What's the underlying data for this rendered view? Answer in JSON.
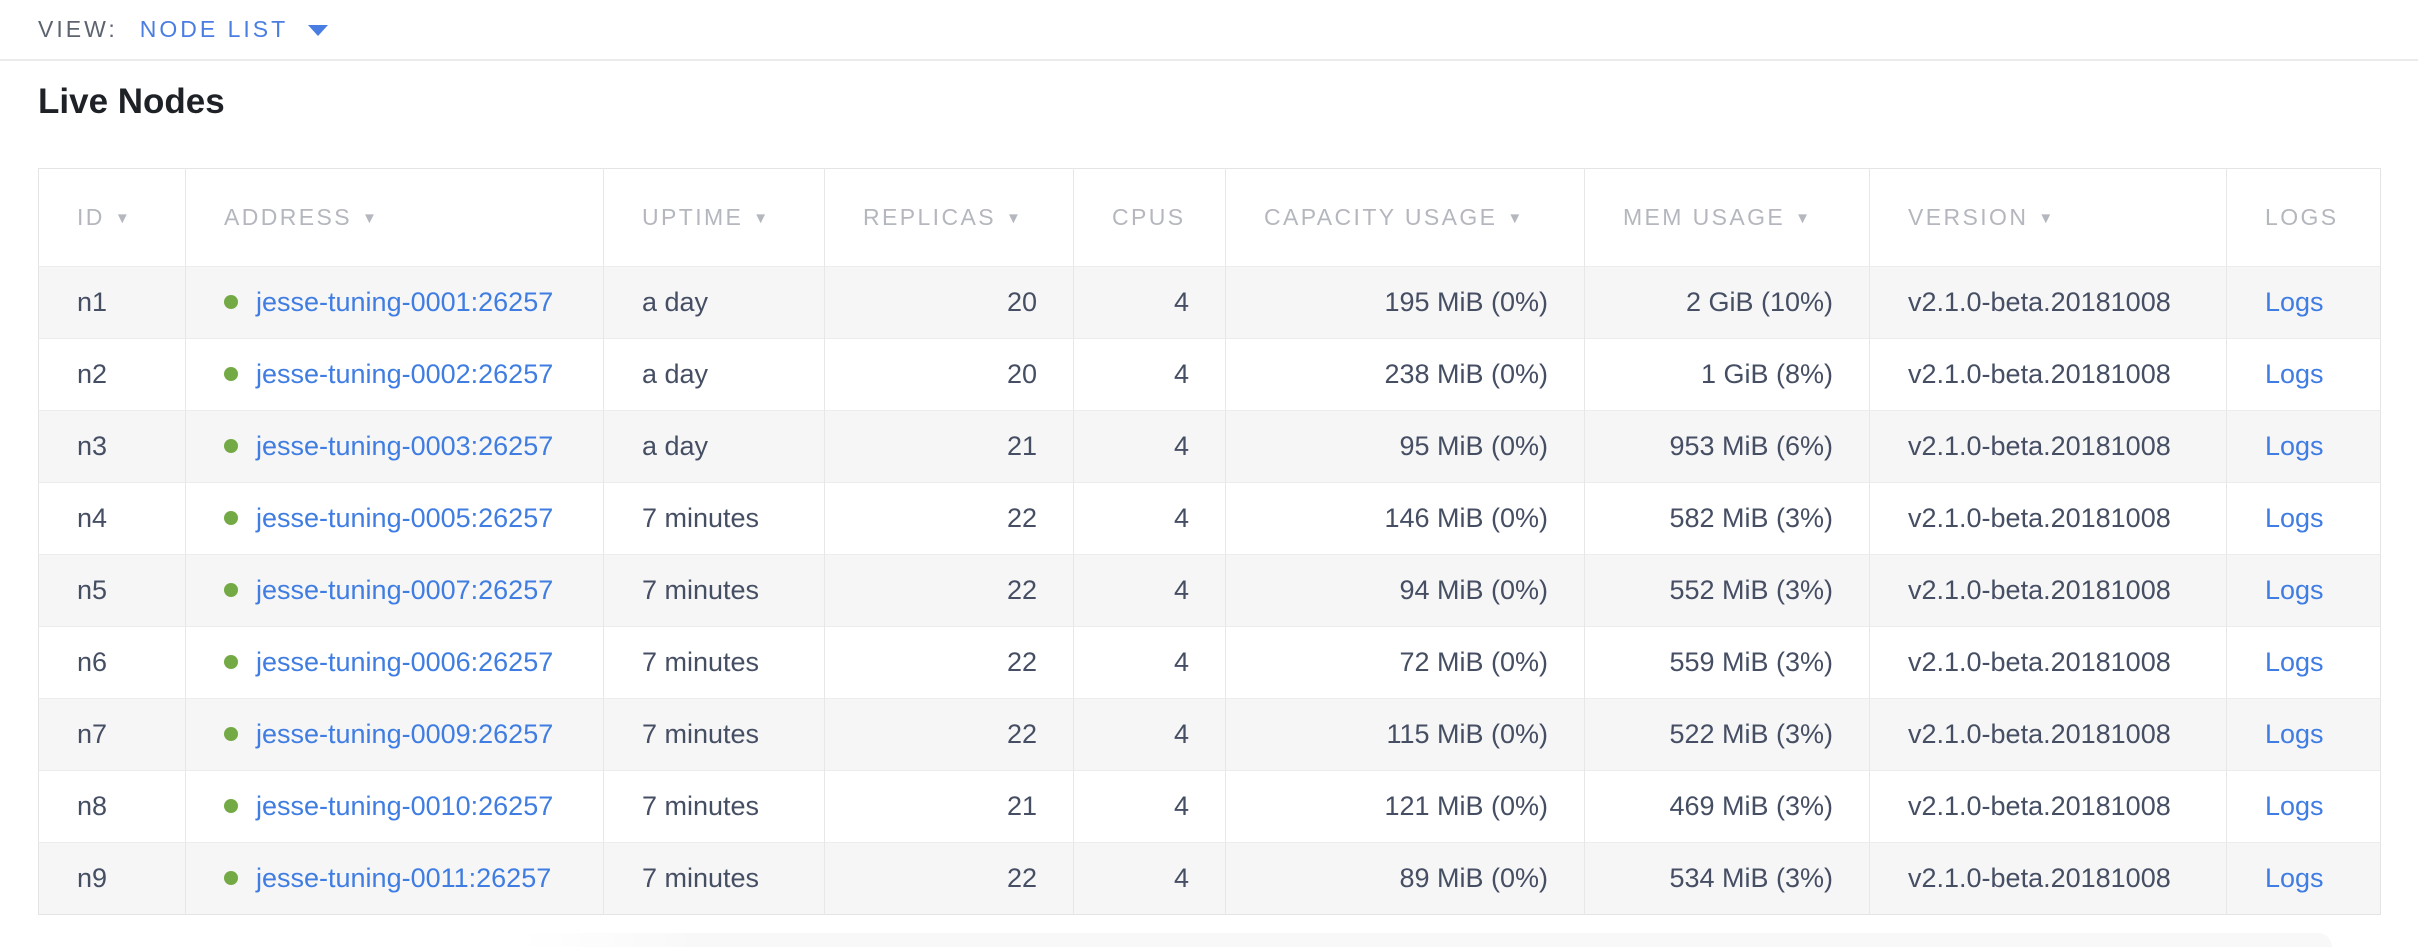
{
  "toolbar": {
    "view_label": "VIEW:",
    "view_value": "NODE LIST"
  },
  "section": {
    "title": "Live Nodes"
  },
  "table": {
    "columns": [
      {
        "key": "id",
        "label": "ID",
        "sortable": true,
        "align": "left"
      },
      {
        "key": "address",
        "label": "ADDRESS",
        "sortable": true,
        "align": "left"
      },
      {
        "key": "uptime",
        "label": "UPTIME",
        "sortable": true,
        "align": "left"
      },
      {
        "key": "replicas",
        "label": "REPLICAS",
        "sortable": true,
        "align": "right"
      },
      {
        "key": "cpus",
        "label": "CPUS",
        "sortable": false,
        "align": "right"
      },
      {
        "key": "capacity",
        "label": "CAPACITY USAGE",
        "sortable": true,
        "align": "right"
      },
      {
        "key": "mem",
        "label": "MEM USAGE",
        "sortable": true,
        "align": "right"
      },
      {
        "key": "version",
        "label": "VERSION",
        "sortable": true,
        "align": "left"
      },
      {
        "key": "logs",
        "label": "LOGS",
        "sortable": false,
        "align": "left"
      }
    ],
    "rows": [
      {
        "id": "n1",
        "address": "jesse-tuning-0001:26257",
        "uptime": "a day",
        "replicas": "20",
        "cpus": "4",
        "capacity": "195 MiB (0%)",
        "mem": "2 GiB (10%)",
        "version": "v2.1.0-beta.20181008",
        "logs": "Logs",
        "status": "healthy"
      },
      {
        "id": "n2",
        "address": "jesse-tuning-0002:26257",
        "uptime": "a day",
        "replicas": "20",
        "cpus": "4",
        "capacity": "238 MiB (0%)",
        "mem": "1 GiB (8%)",
        "version": "v2.1.0-beta.20181008",
        "logs": "Logs",
        "status": "healthy"
      },
      {
        "id": "n3",
        "address": "jesse-tuning-0003:26257",
        "uptime": "a day",
        "replicas": "21",
        "cpus": "4",
        "capacity": "95 MiB (0%)",
        "mem": "953 MiB (6%)",
        "version": "v2.1.0-beta.20181008",
        "logs": "Logs",
        "status": "healthy"
      },
      {
        "id": "n4",
        "address": "jesse-tuning-0005:26257",
        "uptime": "7 minutes",
        "replicas": "22",
        "cpus": "4",
        "capacity": "146 MiB (0%)",
        "mem": "582 MiB (3%)",
        "version": "v2.1.0-beta.20181008",
        "logs": "Logs",
        "status": "healthy"
      },
      {
        "id": "n5",
        "address": "jesse-tuning-0007:26257",
        "uptime": "7 minutes",
        "replicas": "22",
        "cpus": "4",
        "capacity": "94 MiB (0%)",
        "mem": "552 MiB (3%)",
        "version": "v2.1.0-beta.20181008",
        "logs": "Logs",
        "status": "healthy"
      },
      {
        "id": "n6",
        "address": "jesse-tuning-0006:26257",
        "uptime": "7 minutes",
        "replicas": "22",
        "cpus": "4",
        "capacity": "72 MiB (0%)",
        "mem": "559 MiB (3%)",
        "version": "v2.1.0-beta.20181008",
        "logs": "Logs",
        "status": "healthy"
      },
      {
        "id": "n7",
        "address": "jesse-tuning-0009:26257",
        "uptime": "7 minutes",
        "replicas": "22",
        "cpus": "4",
        "capacity": "115 MiB (0%)",
        "mem": "522 MiB (3%)",
        "version": "v2.1.0-beta.20181008",
        "logs": "Logs",
        "status": "healthy"
      },
      {
        "id": "n8",
        "address": "jesse-tuning-0010:26257",
        "uptime": "7 minutes",
        "replicas": "21",
        "cpus": "4",
        "capacity": "121 MiB (0%)",
        "mem": "469 MiB (3%)",
        "version": "v2.1.0-beta.20181008",
        "logs": "Logs",
        "status": "healthy"
      },
      {
        "id": "n9",
        "address": "jesse-tuning-0011:26257",
        "uptime": "7 minutes",
        "replicas": "22",
        "cpus": "4",
        "capacity": "89 MiB (0%)",
        "mem": "534 MiB (3%)",
        "version": "v2.1.0-beta.20181008",
        "logs": "Logs",
        "status": "healthy"
      }
    ]
  },
  "icons": {
    "sort_arrow": "▼",
    "status_dot": "healthy-green-dot",
    "dropdown_caret": "chevron-down"
  },
  "colors": {
    "accent_blue": "#4a7de2",
    "link_blue": "#3f7de2",
    "healthy_green": "#74aa45",
    "header_gray": "#b4b7bd",
    "text_slate": "#454e63",
    "alt_row_bg": "#f6f6f7",
    "border": "#e7e7e9"
  }
}
